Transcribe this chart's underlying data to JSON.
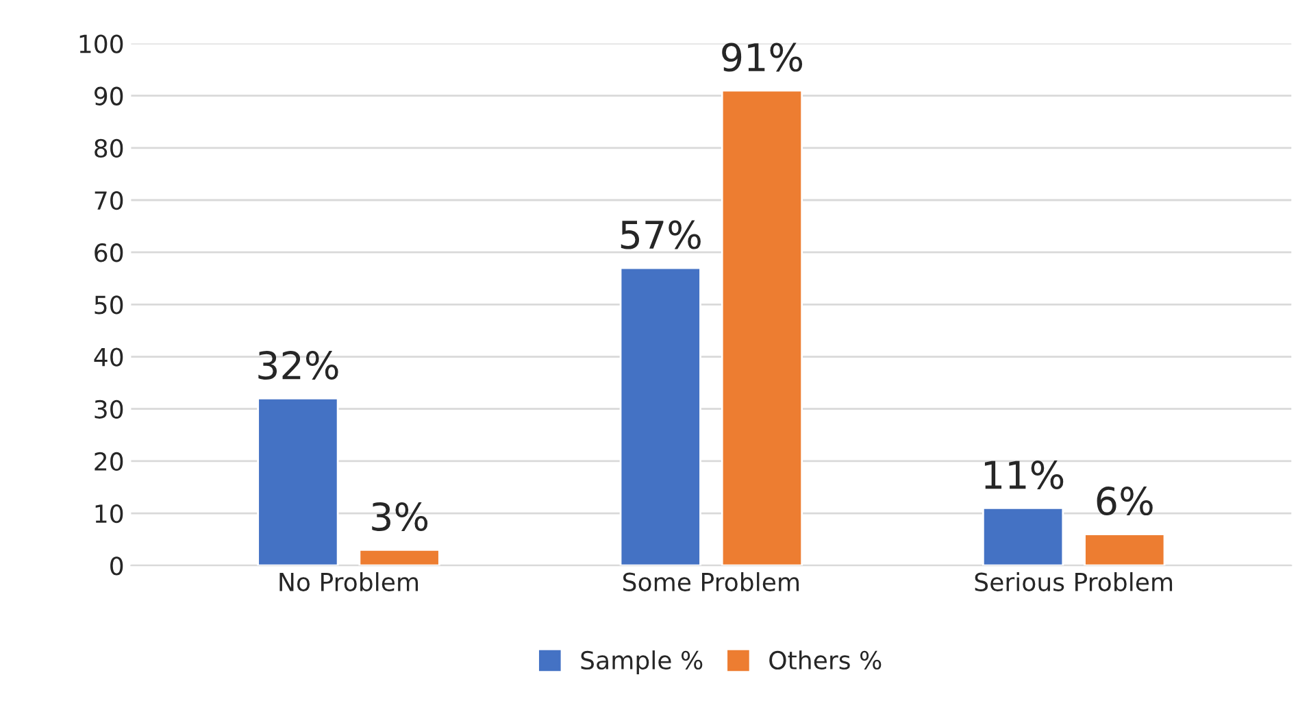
{
  "chart_data": {
    "type": "bar",
    "categories": [
      "No Problem",
      "Some Problem",
      "Serious Problem"
    ],
    "series": [
      {
        "name": "Sample %",
        "color": "#4472c4",
        "values": [
          32,
          57,
          11
        ],
        "value_labels": [
          "32%",
          "57%",
          "11%"
        ]
      },
      {
        "name": "Others %",
        "color": "#ed7d31",
        "values": [
          3,
          91,
          6
        ],
        "value_labels": [
          "3%",
          "91%",
          "6%"
        ]
      }
    ],
    "ylim": [
      0,
      100
    ],
    "yticks": [
      0,
      10,
      20,
      30,
      40,
      50,
      60,
      70,
      80,
      90,
      100
    ],
    "grid": "y",
    "legend": "bottom"
  }
}
